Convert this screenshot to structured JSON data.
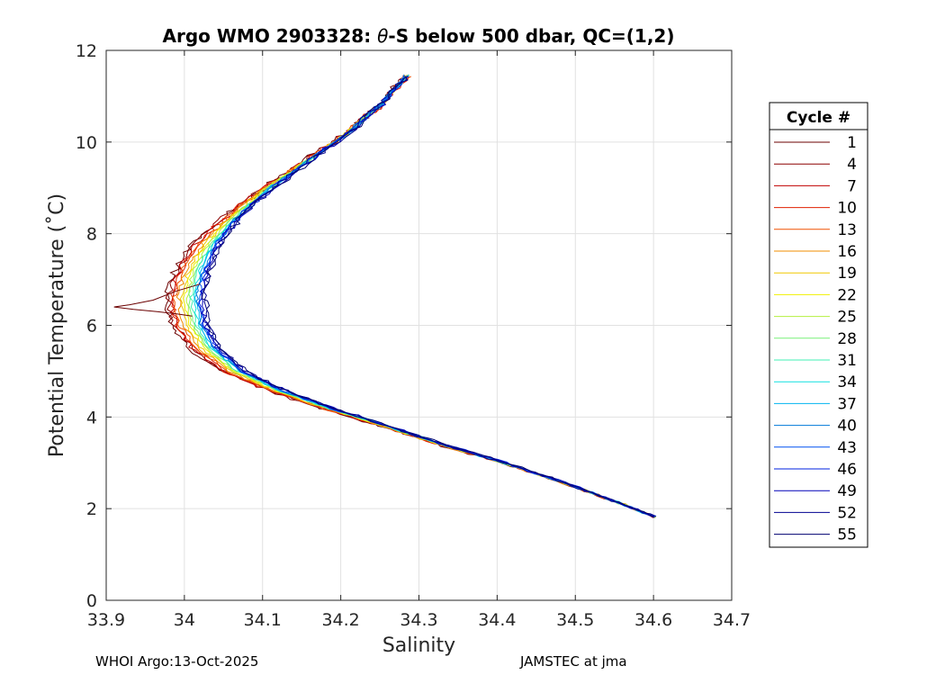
{
  "chart_data": {
    "type": "line",
    "title_prefix": "Argo WMO 2903328: ",
    "title_theta": "θ",
    "title_suffix": "-S below 500 dbar,  QC=(1,2)",
    "xlabel": "Salinity",
    "ylabel": "Potential Temperature (˚C)",
    "xlim": [
      33.9,
      34.7
    ],
    "ylim": [
      0,
      12
    ],
    "xticks": [
      33.9,
      34,
      34.1,
      34.2,
      34.3,
      34.4,
      34.5,
      34.6,
      34.7
    ],
    "xtick_labels": [
      "33.9",
      "34",
      "34.1",
      "34.2",
      "34.3",
      "34.4",
      "34.5",
      "34.6",
      "34.7"
    ],
    "yticks": [
      0,
      2,
      4,
      6,
      8,
      10,
      12
    ],
    "ytick_labels": [
      "0",
      "2",
      "4",
      "6",
      "8",
      "10",
      "12"
    ],
    "grid": true,
    "legend_title": "Cycle #",
    "legend_position": "right-outside",
    "legend_entries": [
      {
        "label": "1",
        "color": "#6b0000"
      },
      {
        "label": "4",
        "color": "#8b0000"
      },
      {
        "label": "7",
        "color": "#c00000"
      },
      {
        "label": "10",
        "color": "#e02000"
      },
      {
        "label": "13",
        "color": "#f05000"
      },
      {
        "label": "16",
        "color": "#f08c00"
      },
      {
        "label": "19",
        "color": "#f0c800"
      },
      {
        "label": "22",
        "color": "#f0f000"
      },
      {
        "label": "25",
        "color": "#b4f040"
      },
      {
        "label": "28",
        "color": "#78f078"
      },
      {
        "label": "31",
        "color": "#40f0b4"
      },
      {
        "label": "34",
        "color": "#10e0e0"
      },
      {
        "label": "37",
        "color": "#00b4f0"
      },
      {
        "label": "40",
        "color": "#0078d8"
      },
      {
        "label": "43",
        "color": "#0050f0"
      },
      {
        "label": "46",
        "color": "#0020e0"
      },
      {
        "label": "49",
        "color": "#0000b8"
      },
      {
        "label": "52",
        "color": "#000090"
      },
      {
        "label": "55",
        "color": "#000070"
      }
    ],
    "mean_profile": {
      "temperature": [
        11.45,
        10.8,
        10.2,
        9.6,
        9.0,
        8.4,
        7.8,
        7.2,
        6.6,
        6.0,
        5.5,
        5.0,
        4.6,
        4.2,
        3.8,
        3.4,
        3.0,
        2.6,
        2.2,
        1.82
      ],
      "salinity": [
        34.285,
        34.25,
        34.21,
        34.16,
        34.11,
        34.068,
        34.038,
        34.02,
        34.012,
        34.018,
        34.035,
        34.07,
        34.12,
        34.185,
        34.26,
        34.33,
        34.41,
        34.48,
        34.545,
        34.602
      ]
    },
    "cycle_offsets": [
      {
        "ds": -0.035,
        "jitter": 0.012
      },
      {
        "ds": -0.032,
        "jitter": 0.011
      },
      {
        "ds": -0.03,
        "jitter": 0.01
      },
      {
        "ds": -0.028,
        "jitter": 0.009
      },
      {
        "ds": -0.025,
        "jitter": 0.008
      },
      {
        "ds": -0.02,
        "jitter": 0.007
      },
      {
        "ds": -0.016,
        "jitter": 0.006
      },
      {
        "ds": -0.012,
        "jitter": 0.005
      },
      {
        "ds": -0.009,
        "jitter": 0.005
      },
      {
        "ds": -0.006,
        "jitter": 0.005
      },
      {
        "ds": -0.003,
        "jitter": 0.005
      },
      {
        "ds": 0.0,
        "jitter": 0.005
      },
      {
        "ds": 0.002,
        "jitter": 0.005
      },
      {
        "ds": 0.004,
        "jitter": 0.006
      },
      {
        "ds": 0.006,
        "jitter": 0.007
      },
      {
        "ds": 0.008,
        "jitter": 0.008
      },
      {
        "ds": 0.01,
        "jitter": 0.009
      },
      {
        "ds": 0.012,
        "jitter": 0.009
      },
      {
        "ds": 0.014,
        "jitter": 0.01
      }
    ],
    "anomaly_cycle_1": {
      "salinity": [
        34.02,
        33.99,
        33.96,
        33.93,
        33.91,
        33.935,
        33.965,
        33.99,
        34.01
      ],
      "temperature": [
        6.9,
        6.75,
        6.55,
        6.45,
        6.4,
        6.35,
        6.3,
        6.25,
        6.2
      ]
    }
  },
  "footer": {
    "left": "WHOI Argo:13-Oct-2025",
    "right": "JAMSTEC at jma"
  }
}
